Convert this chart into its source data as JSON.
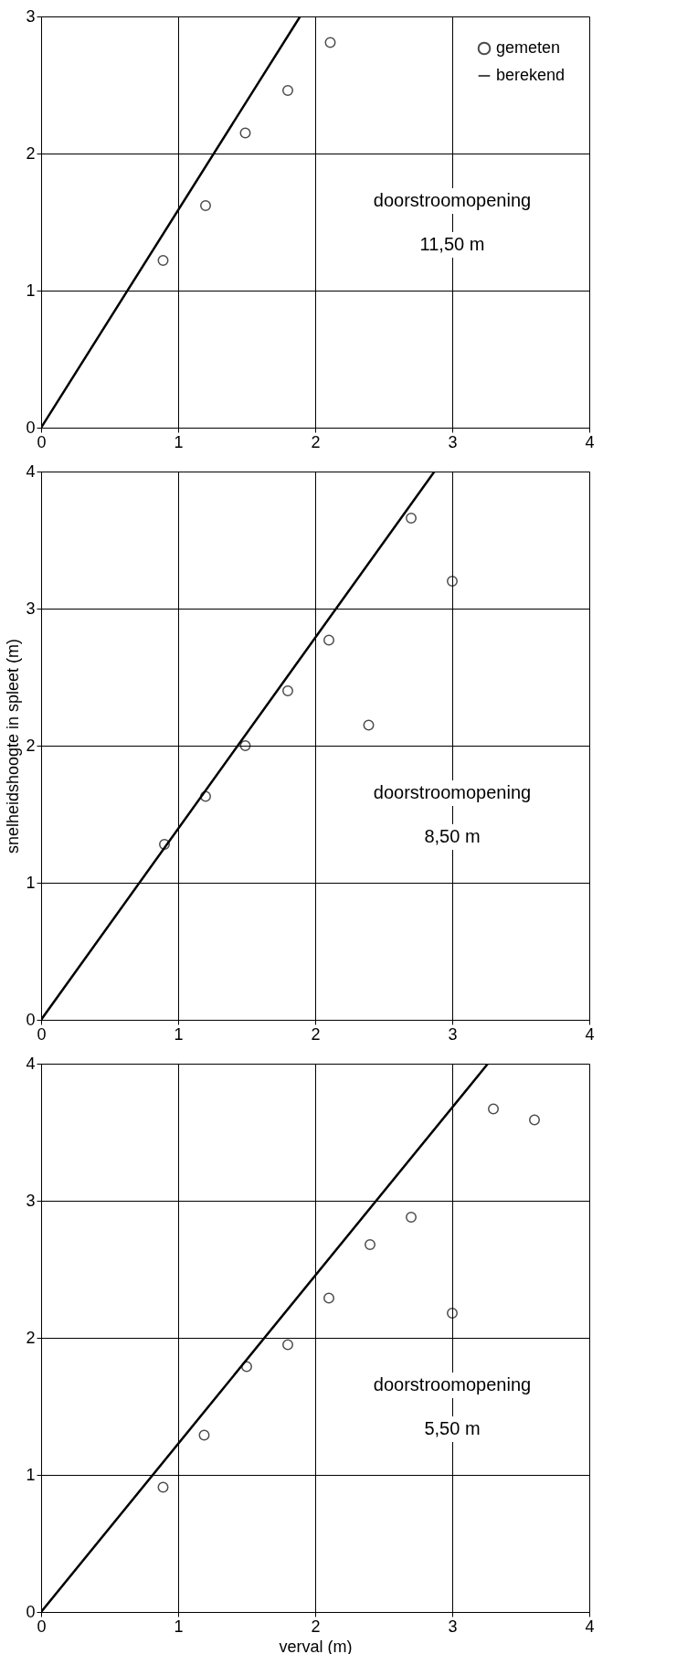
{
  "chart_data": [
    {
      "type": "scatter",
      "xlim": [
        0,
        4
      ],
      "ylim": [
        0,
        3
      ],
      "xticks": [
        0,
        1,
        2,
        3,
        4
      ],
      "yticks": [
        0,
        1,
        2,
        3
      ],
      "grid": true,
      "legend": "top right",
      "annotations": [
        "doorstroomopening",
        "11,50 m"
      ],
      "series": [
        {
          "name": "gemeten",
          "marker": "circle",
          "color": "#000000",
          "x": [
            0.89,
            1.2,
            1.49,
            1.8,
            2.11
          ],
          "values": [
            1.22,
            1.62,
            2.15,
            2.46,
            2.81
          ]
        },
        {
          "name": "berekend",
          "type": "line",
          "line_style": "solid",
          "color": "#000000",
          "x": [
            0,
            1.89
          ],
          "values": [
            0,
            3
          ]
        }
      ]
    },
    {
      "type": "scatter",
      "xlim": [
        0,
        4
      ],
      "ylim": [
        0,
        4
      ],
      "xticks": [
        0,
        1,
        2,
        3,
        4
      ],
      "yticks": [
        0,
        1,
        2,
        3,
        4
      ],
      "grid": true,
      "ylabel": "snelheidshoogte in spleet (m)",
      "annotations": [
        "doorstroomopening",
        "8,50 m"
      ],
      "series": [
        {
          "marker": "circle",
          "color": "#000000",
          "x": [
            0.9,
            1.2,
            1.49,
            1.8,
            2.1,
            2.39,
            2.7,
            3.0
          ],
          "values": [
            1.28,
            1.63,
            2.0,
            2.4,
            2.77,
            2.15,
            3.66,
            3.2
          ]
        },
        {
          "type": "line",
          "line_style": "solid",
          "color": "#000000",
          "x": [
            0,
            2.87
          ],
          "values": [
            0,
            4
          ]
        }
      ]
    },
    {
      "type": "scatter",
      "xlim": [
        0,
        4
      ],
      "ylim": [
        0,
        4
      ],
      "xticks": [
        0,
        1,
        2,
        3,
        4
      ],
      "yticks": [
        0,
        1,
        2,
        3,
        4
      ],
      "grid": true,
      "xlabel": "verval (m)",
      "annotations": [
        "doorstroomopening",
        "5,50 m"
      ],
      "series": [
        {
          "marker": "circle",
          "color": "#000000",
          "x": [
            0.89,
            1.19,
            1.5,
            1.8,
            2.1,
            2.4,
            2.7,
            3.0,
            3.3,
            3.6
          ],
          "values": [
            0.91,
            1.29,
            1.79,
            1.95,
            2.29,
            2.68,
            2.88,
            2.18,
            3.67,
            3.59
          ]
        },
        {
          "type": "line",
          "line_style": "solid",
          "color": "#000000",
          "x": [
            0,
            3.26
          ],
          "values": [
            0,
            4
          ]
        }
      ]
    }
  ]
}
